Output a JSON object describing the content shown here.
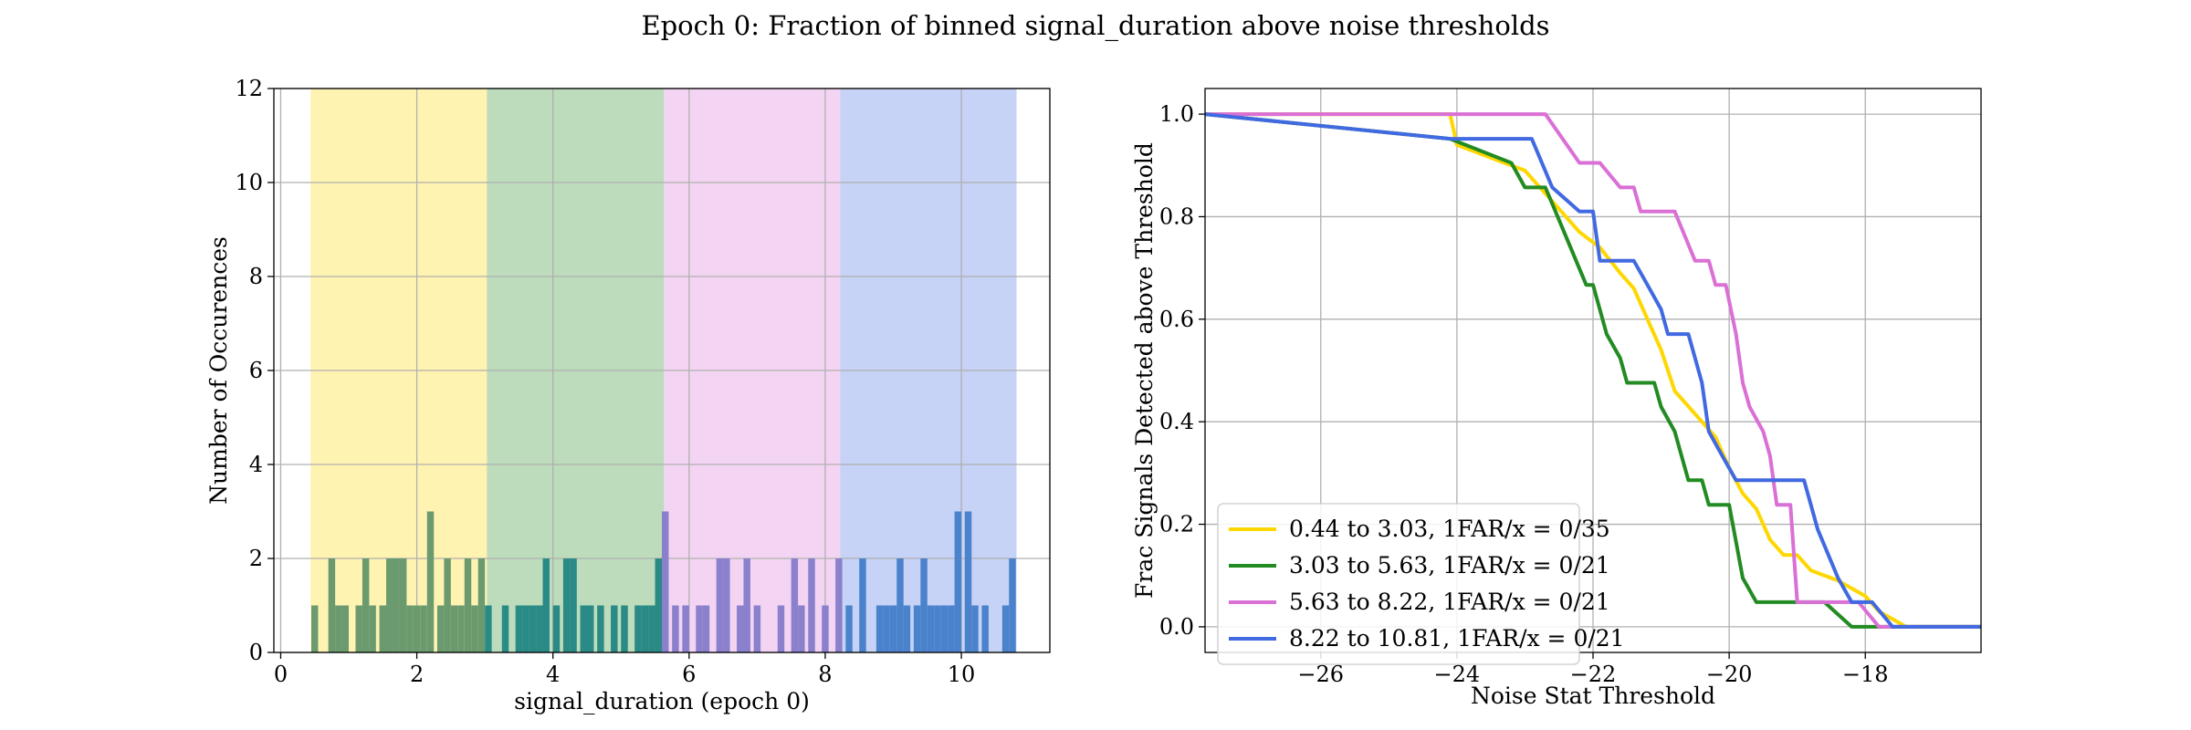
{
  "figure_title": "Epoch 0: Fraction of binned signal_duration above noise thresholds",
  "chart_data": [
    {
      "type": "bar",
      "subtype": "histogram",
      "title": "",
      "xlabel": "signal_duration (epoch 0)",
      "ylabel": "Number of Occurences",
      "xlim": [
        -0.1,
        11.3
      ],
      "ylim": [
        0,
        12
      ],
      "xticks": [
        0,
        2,
        4,
        6,
        8,
        10
      ],
      "yticks": [
        0,
        2,
        4,
        6,
        8,
        10,
        12
      ],
      "grid": true,
      "bin_width": 0.1,
      "bands": [
        {
          "from": 0.44,
          "to": 3.03,
          "color": "#ffd700"
        },
        {
          "from": 3.03,
          "to": 5.63,
          "color": "#228b22"
        },
        {
          "from": 5.63,
          "to": 8.22,
          "color": "#da70d6"
        },
        {
          "from": 8.22,
          "to": 10.81,
          "color": "#4169e1"
        }
      ],
      "bars": [
        {
          "x": 0.5,
          "h": 1
        },
        {
          "x": 0.75,
          "h": 2
        },
        {
          "x": 0.85,
          "h": 1
        },
        {
          "x": 0.95,
          "h": 1
        },
        {
          "x": 1.15,
          "h": 1
        },
        {
          "x": 1.25,
          "h": 2
        },
        {
          "x": 1.35,
          "h": 1
        },
        {
          "x": 1.5,
          "h": 1
        },
        {
          "x": 1.6,
          "h": 2
        },
        {
          "x": 1.7,
          "h": 2
        },
        {
          "x": 1.8,
          "h": 2
        },
        {
          "x": 1.9,
          "h": 1
        },
        {
          "x": 2.0,
          "h": 1
        },
        {
          "x": 2.1,
          "h": 1
        },
        {
          "x": 2.2,
          "h": 3
        },
        {
          "x": 2.35,
          "h": 1
        },
        {
          "x": 2.45,
          "h": 2
        },
        {
          "x": 2.55,
          "h": 1
        },
        {
          "x": 2.65,
          "h": 1
        },
        {
          "x": 2.75,
          "h": 2
        },
        {
          "x": 2.85,
          "h": 1
        },
        {
          "x": 2.95,
          "h": 2
        },
        {
          "x": 3.05,
          "h": 1
        },
        {
          "x": 3.3,
          "h": 1
        },
        {
          "x": 3.5,
          "h": 1
        },
        {
          "x": 3.6,
          "h": 1
        },
        {
          "x": 3.7,
          "h": 1
        },
        {
          "x": 3.8,
          "h": 1
        },
        {
          "x": 3.9,
          "h": 2
        },
        {
          "x": 4.05,
          "h": 1
        },
        {
          "x": 4.2,
          "h": 2
        },
        {
          "x": 4.3,
          "h": 2
        },
        {
          "x": 4.45,
          "h": 1
        },
        {
          "x": 4.55,
          "h": 1
        },
        {
          "x": 4.7,
          "h": 1
        },
        {
          "x": 4.9,
          "h": 1
        },
        {
          "x": 5.05,
          "h": 1
        },
        {
          "x": 5.25,
          "h": 1
        },
        {
          "x": 5.35,
          "h": 1
        },
        {
          "x": 5.45,
          "h": 1
        },
        {
          "x": 5.55,
          "h": 2
        },
        {
          "x": 5.65,
          "h": 3
        },
        {
          "x": 5.8,
          "h": 1
        },
        {
          "x": 5.95,
          "h": 1
        },
        {
          "x": 6.15,
          "h": 1
        },
        {
          "x": 6.25,
          "h": 1
        },
        {
          "x": 6.45,
          "h": 2
        },
        {
          "x": 6.55,
          "h": 2
        },
        {
          "x": 6.75,
          "h": 1
        },
        {
          "x": 6.85,
          "h": 2
        },
        {
          "x": 7.0,
          "h": 1
        },
        {
          "x": 7.35,
          "h": 1
        },
        {
          "x": 7.55,
          "h": 2
        },
        {
          "x": 7.65,
          "h": 1
        },
        {
          "x": 7.8,
          "h": 2
        },
        {
          "x": 8.0,
          "h": 1
        },
        {
          "x": 8.2,
          "h": 2
        },
        {
          "x": 8.35,
          "h": 1
        },
        {
          "x": 8.55,
          "h": 2
        },
        {
          "x": 8.8,
          "h": 1
        },
        {
          "x": 8.9,
          "h": 1
        },
        {
          "x": 9.0,
          "h": 1
        },
        {
          "x": 9.1,
          "h": 2
        },
        {
          "x": 9.2,
          "h": 1
        },
        {
          "x": 9.35,
          "h": 1
        },
        {
          "x": 9.45,
          "h": 2
        },
        {
          "x": 9.55,
          "h": 1
        },
        {
          "x": 9.65,
          "h": 1
        },
        {
          "x": 9.75,
          "h": 1
        },
        {
          "x": 9.85,
          "h": 1
        },
        {
          "x": 9.95,
          "h": 3
        },
        {
          "x": 10.1,
          "h": 3
        },
        {
          "x": 10.2,
          "h": 1
        },
        {
          "x": 10.35,
          "h": 1
        },
        {
          "x": 10.65,
          "h": 1
        },
        {
          "x": 10.75,
          "h": 2
        }
      ]
    },
    {
      "type": "line",
      "title": "",
      "xlabel": "Noise Stat Threshold",
      "ylabel": "Frac Signals Detected above Threshold",
      "xlim": [
        -27.7,
        -16.3
      ],
      "ylim": [
        -0.05,
        1.05
      ],
      "xticks": [
        -26,
        -24,
        -22,
        -20,
        -18
      ],
      "xtick_labels": [
        "−26",
        "−24",
        "−22",
        "−20",
        "−18"
      ],
      "yticks": [
        0.0,
        0.2,
        0.4,
        0.6,
        0.8,
        1.0
      ],
      "ytick_labels": [
        "0.0",
        "0.2",
        "0.4",
        "0.6",
        "0.8",
        "1.0"
      ],
      "grid": true,
      "legend_position": "lower-left",
      "series": [
        {
          "name": "0.44 to 3.03, 1FAR/x = 0/35",
          "color": "#ffd700",
          "points": [
            [
              -27.7,
              1.0
            ],
            [
              -24.1,
              1.0
            ],
            [
              -24.0,
              0.94
            ],
            [
              -23.4,
              0.91
            ],
            [
              -23.0,
              0.89
            ],
            [
              -22.6,
              0.83
            ],
            [
              -22.2,
              0.77
            ],
            [
              -21.9,
              0.74
            ],
            [
              -21.6,
              0.69
            ],
            [
              -21.4,
              0.66
            ],
            [
              -21.2,
              0.6
            ],
            [
              -21.0,
              0.54
            ],
            [
              -20.8,
              0.46
            ],
            [
              -20.6,
              0.43
            ],
            [
              -20.4,
              0.4
            ],
            [
              -20.2,
              0.37
            ],
            [
              -20.0,
              0.31
            ],
            [
              -19.8,
              0.26
            ],
            [
              -19.6,
              0.23
            ],
            [
              -19.4,
              0.17
            ],
            [
              -19.2,
              0.14
            ],
            [
              -19.0,
              0.14
            ],
            [
              -18.8,
              0.11
            ],
            [
              -18.4,
              0.09
            ],
            [
              -18.0,
              0.06
            ],
            [
              -17.8,
              0.03
            ],
            [
              -17.4,
              0.0
            ],
            [
              -16.3,
              0.0
            ]
          ]
        },
        {
          "name": "3.03 to 5.63, 1FAR/x = 0/21",
          "color": "#228b22",
          "points": [
            [
              -27.7,
              1.0
            ],
            [
              -24.1,
              0.952
            ],
            [
              -23.2,
              0.905
            ],
            [
              -23.0,
              0.857
            ],
            [
              -22.7,
              0.857
            ],
            [
              -22.4,
              0.762
            ],
            [
              -22.1,
              0.667
            ],
            [
              -22.0,
              0.667
            ],
            [
              -21.8,
              0.571
            ],
            [
              -21.6,
              0.524
            ],
            [
              -21.5,
              0.476
            ],
            [
              -21.1,
              0.476
            ],
            [
              -21.0,
              0.429
            ],
            [
              -20.8,
              0.381
            ],
            [
              -20.6,
              0.286
            ],
            [
              -20.4,
              0.286
            ],
            [
              -20.3,
              0.238
            ],
            [
              -20.0,
              0.238
            ],
            [
              -19.8,
              0.095
            ],
            [
              -19.6,
              0.048
            ],
            [
              -18.6,
              0.048
            ],
            [
              -18.2,
              0.0
            ],
            [
              -16.3,
              0.0
            ]
          ]
        },
        {
          "name": "5.63 to 8.22, 1FAR/x = 0/21",
          "color": "#da70d6",
          "points": [
            [
              -27.7,
              1.0
            ],
            [
              -22.7,
              1.0
            ],
            [
              -22.2,
              0.905
            ],
            [
              -21.9,
              0.905
            ],
            [
              -21.6,
              0.857
            ],
            [
              -21.4,
              0.857
            ],
            [
              -21.3,
              0.81
            ],
            [
              -20.8,
              0.81
            ],
            [
              -20.5,
              0.714
            ],
            [
              -20.3,
              0.714
            ],
            [
              -20.2,
              0.667
            ],
            [
              -20.05,
              0.667
            ],
            [
              -19.9,
              0.571
            ],
            [
              -19.8,
              0.476
            ],
            [
              -19.7,
              0.429
            ],
            [
              -19.5,
              0.381
            ],
            [
              -19.4,
              0.333
            ],
            [
              -19.3,
              0.238
            ],
            [
              -19.1,
              0.238
            ],
            [
              -19.0,
              0.048
            ],
            [
              -18.1,
              0.048
            ],
            [
              -17.8,
              0.0
            ],
            [
              -16.3,
              0.0
            ]
          ]
        },
        {
          "name": "8.22 to 10.81, 1FAR/x = 0/21",
          "color": "#4169e1",
          "points": [
            [
              -27.7,
              1.0
            ],
            [
              -24.1,
              0.952
            ],
            [
              -22.9,
              0.952
            ],
            [
              -22.6,
              0.857
            ],
            [
              -22.2,
              0.81
            ],
            [
              -22.0,
              0.81
            ],
            [
              -21.9,
              0.714
            ],
            [
              -21.4,
              0.714
            ],
            [
              -21.2,
              0.667
            ],
            [
              -21.0,
              0.619
            ],
            [
              -20.9,
              0.571
            ],
            [
              -20.6,
              0.571
            ],
            [
              -20.5,
              0.524
            ],
            [
              -20.4,
              0.476
            ],
            [
              -20.3,
              0.381
            ],
            [
              -20.1,
              0.333
            ],
            [
              -19.9,
              0.286
            ],
            [
              -18.9,
              0.286
            ],
            [
              -18.7,
              0.19
            ],
            [
              -18.4,
              0.095
            ],
            [
              -18.2,
              0.048
            ],
            [
              -17.9,
              0.048
            ],
            [
              -17.6,
              0.0
            ],
            [
              -16.3,
              0.0
            ]
          ]
        }
      ]
    }
  ]
}
